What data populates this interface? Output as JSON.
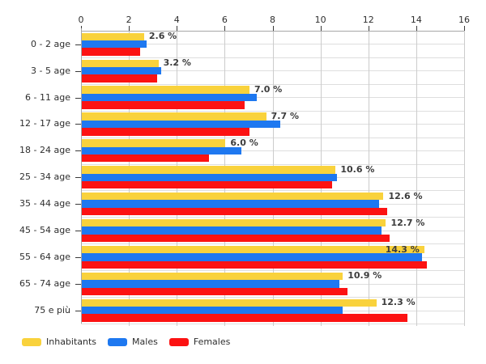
{
  "chart_data": {
    "type": "bar",
    "orientation": "horizontal",
    "title": "",
    "xlabel": "",
    "ylabel": "",
    "xlim": [
      0,
      16
    ],
    "x_ticks": [
      "0",
      "2",
      "4",
      "6",
      "8",
      "10",
      "12",
      "14",
      "16"
    ],
    "grid": true,
    "legend_position": "bottom",
    "categories": [
      "0 - 2 age",
      "3 - 5 age",
      "6 - 11 age",
      "12 - 17 age",
      "18 - 24 age",
      "25 - 34 age",
      "35 - 44 age",
      "45 - 54 age",
      "55 - 64 age",
      "65 - 74 age",
      "75 e più"
    ],
    "series": [
      {
        "name": "Inhabitants",
        "color": "#F9D23C",
        "values": [
          2.6,
          3.2,
          7.0,
          7.7,
          6.0,
          10.6,
          12.6,
          12.7,
          14.3,
          10.9,
          12.3
        ]
      },
      {
        "name": "Males",
        "color": "#1E78F0",
        "values": [
          2.7,
          3.3,
          7.3,
          8.3,
          6.65,
          10.65,
          12.4,
          12.5,
          14.2,
          10.75,
          10.9
        ]
      },
      {
        "name": "Females",
        "color": "#FC1212",
        "values": [
          2.45,
          3.15,
          6.8,
          7.0,
          5.3,
          10.45,
          12.75,
          12.85,
          14.4,
          11.1,
          13.6
        ]
      }
    ],
    "value_labels": [
      "2.6 %",
      "3.2 %",
      "7.0 %",
      "7.7 %",
      "6.0 %",
      "10.6 %",
      "12.6 %",
      "12.7 %",
      "14.3 %",
      "10.9 %",
      "12.3 %"
    ]
  },
  "legend": {
    "items": [
      {
        "label": "Inhabitants",
        "color": "#F9D23C"
      },
      {
        "label": "Males",
        "color": "#1E78F0"
      },
      {
        "label": "Females",
        "color": "#FC1212"
      }
    ]
  },
  "colors": {
    "background": "#ffffff",
    "grid_vertical": "#cccccc",
    "grid_horizontal": "#dedede",
    "axis": "#a6a6a6",
    "text": "#2e2e2e",
    "value_label_text": "#3c3c3c"
  }
}
